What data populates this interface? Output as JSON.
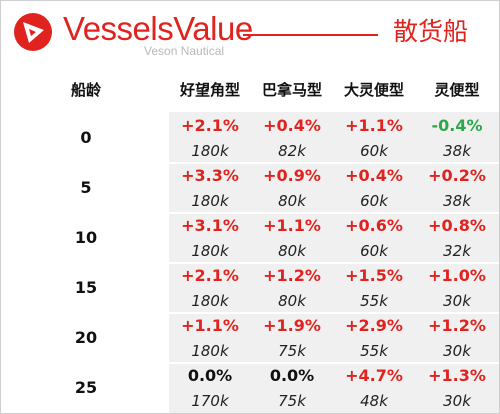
{
  "header": {
    "brand": "VesselsValue",
    "subtitle": "Veson Nautical",
    "title": "散货船"
  },
  "table": {
    "age_header": "船龄",
    "columns": [
      "好望角型",
      "巴拿马型",
      "大灵便型",
      "灵便型"
    ],
    "rows": [
      {
        "age": "0",
        "cells": [
          {
            "change": "+2.1%",
            "value": "180k"
          },
          {
            "change": "+0.4%",
            "value": "82k"
          },
          {
            "change": "+1.1%",
            "value": "60k"
          },
          {
            "change": "-0.4%",
            "value": "38k"
          }
        ]
      },
      {
        "age": "5",
        "cells": [
          {
            "change": "+3.3%",
            "value": "180k"
          },
          {
            "change": "+0.9%",
            "value": "80k"
          },
          {
            "change": "+0.4%",
            "value": "60k"
          },
          {
            "change": "+0.2%",
            "value": "38k"
          }
        ]
      },
      {
        "age": "10",
        "cells": [
          {
            "change": "+3.1%",
            "value": "180k"
          },
          {
            "change": "+1.1%",
            "value": "80k"
          },
          {
            "change": "+0.6%",
            "value": "60k"
          },
          {
            "change": "+0.8%",
            "value": "32k"
          }
        ]
      },
      {
        "age": "15",
        "cells": [
          {
            "change": "+2.1%",
            "value": "180k"
          },
          {
            "change": "+1.2%",
            "value": "80k"
          },
          {
            "change": "+1.5%",
            "value": "55k"
          },
          {
            "change": "+1.0%",
            "value": "30k"
          }
        ]
      },
      {
        "age": "20",
        "cells": [
          {
            "change": "+1.1%",
            "value": "180k"
          },
          {
            "change": "+1.9%",
            "value": "75k"
          },
          {
            "change": "+2.9%",
            "value": "55k"
          },
          {
            "change": "+1.2%",
            "value": "30k"
          }
        ]
      },
      {
        "age": "25",
        "cells": [
          {
            "change": "0.0%",
            "value": "170k"
          },
          {
            "change": "0.0%",
            "value": "75k"
          },
          {
            "change": "+4.7%",
            "value": "48k"
          },
          {
            "change": "+1.3%",
            "value": "30k"
          }
        ]
      }
    ]
  },
  "colors": {
    "brand": "#e0231f",
    "positive": "#e0231f",
    "negative": "#2aa84a",
    "neutral": "#111111",
    "cell_background": "#f0f0f0"
  },
  "icons": {
    "logo": "vesselsvalue-logo-icon"
  }
}
